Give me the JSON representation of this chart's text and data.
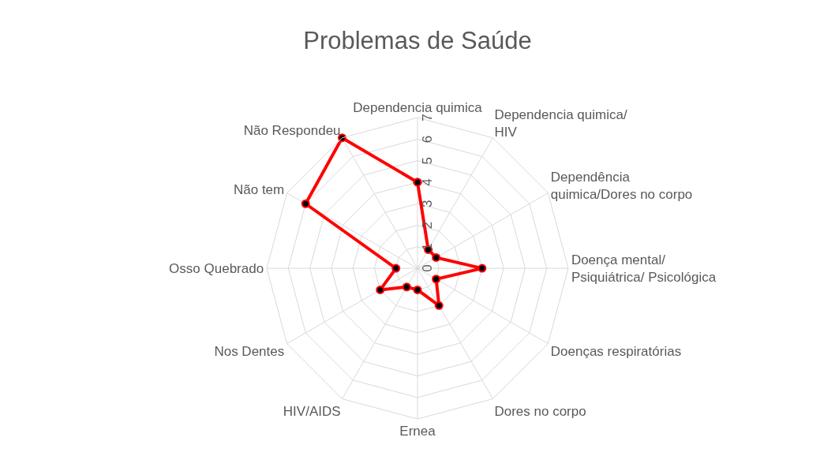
{
  "chart_data": {
    "type": "radar",
    "title": "Problemas de Saúde",
    "categories": [
      "Dependencia quimica",
      "Dependencia quimica/\nHIV",
      "Dependência\nquimica/Dores no corpo",
      "Doença mental/\nPsiquiátrica/ Psicológica",
      "Doenças respiratórias",
      "Dores no corpo",
      "Ernea",
      "HIV/AIDS",
      "Nos Dentes",
      "Osso Quebrado",
      "Não tem",
      "Não Respondeu"
    ],
    "series": [
      {
        "color": "#ff0000",
        "values": [
          4,
          1,
          1,
          3,
          1,
          2,
          1,
          1,
          2,
          1,
          6,
          7
        ]
      }
    ],
    "ylim": [
      0,
      7
    ],
    "yticks": [
      0,
      1,
      2,
      3,
      4,
      5,
      6,
      7
    ],
    "grid": true,
    "legend": false,
    "marker": "circle",
    "line_style": "solid"
  }
}
